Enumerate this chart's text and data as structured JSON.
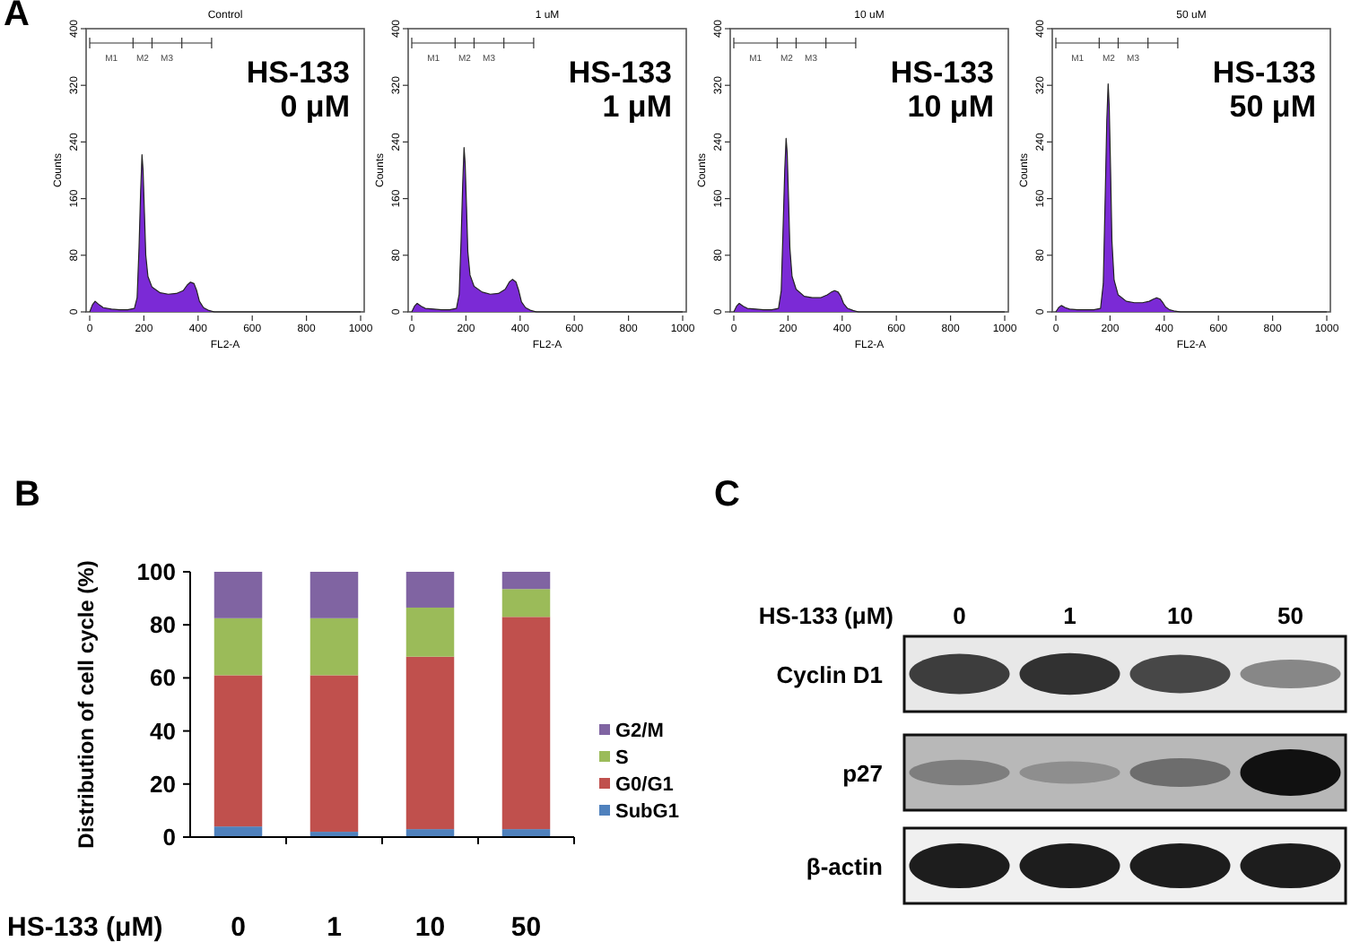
{
  "chart_data": [
    {
      "type": "area",
      "title": "Control",
      "xlabel": "FL2-A",
      "ylabel": "Counts",
      "annotations": [
        "A",
        "HS-133",
        "0 μM",
        "M1",
        "M2",
        "M3"
      ],
      "xlim": [
        0,
        1000
      ],
      "ylim": [
        0,
        400
      ],
      "xticks": [
        0,
        200,
        400,
        600,
        800,
        1000
      ],
      "yticks": [
        0,
        80,
        160,
        240,
        320,
        400
      ],
      "x": [
        0,
        10,
        20,
        35,
        50,
        80,
        110,
        140,
        165,
        175,
        182,
        188,
        193,
        197,
        202,
        207,
        215,
        230,
        260,
        290,
        320,
        345,
        360,
        372,
        385,
        395,
        405,
        420,
        440,
        460,
        1000
      ],
      "series": [
        {
          "color": "#7b2ad6",
          "values": [
            0,
            10,
            15,
            10,
            6,
            4,
            3,
            3,
            5,
            20,
            90,
            170,
            222,
            200,
            140,
            80,
            50,
            35,
            27,
            25,
            26,
            30,
            38,
            42,
            40,
            30,
            15,
            6,
            2,
            0,
            0
          ]
        }
      ]
    },
    {
      "type": "area",
      "title": "1 uM",
      "xlabel": "FL2-A",
      "ylabel": "Counts",
      "annotations": [
        "HS-133",
        "1 μM",
        "M1",
        "M2",
        "M3"
      ],
      "xlim": [
        0,
        1000
      ],
      "ylim": [
        0,
        400
      ],
      "xticks": [
        0,
        200,
        400,
        600,
        800,
        1000
      ],
      "yticks": [
        0,
        80,
        160,
        240,
        320,
        400
      ],
      "x": [
        0,
        10,
        20,
        35,
        50,
        80,
        110,
        140,
        165,
        175,
        182,
        188,
        193,
        197,
        202,
        207,
        215,
        230,
        260,
        290,
        320,
        345,
        360,
        372,
        385,
        395,
        405,
        420,
        440,
        460,
        1000
      ],
      "series": [
        {
          "color": "#7b2ad6",
          "values": [
            0,
            8,
            12,
            8,
            5,
            4,
            3,
            3,
            5,
            25,
            100,
            180,
            232,
            210,
            150,
            85,
            52,
            36,
            28,
            25,
            26,
            32,
            42,
            46,
            42,
            30,
            14,
            6,
            2,
            0,
            0
          ]
        }
      ]
    },
    {
      "type": "area",
      "title": "10 uM",
      "xlabel": "FL2-A",
      "ylabel": "Counts",
      "annotations": [
        "HS-133",
        "10 μM",
        "M1",
        "M2",
        "M3"
      ],
      "xlim": [
        0,
        1000
      ],
      "ylim": [
        0,
        400
      ],
      "xticks": [
        0,
        200,
        400,
        600,
        800,
        1000
      ],
      "yticks": [
        0,
        80,
        160,
        240,
        320,
        400
      ],
      "x": [
        0,
        10,
        20,
        35,
        50,
        80,
        110,
        140,
        165,
        175,
        182,
        188,
        193,
        197,
        202,
        207,
        215,
        230,
        260,
        290,
        320,
        345,
        360,
        372,
        385,
        395,
        405,
        420,
        440,
        460,
        1000
      ],
      "series": [
        {
          "color": "#7b2ad6",
          "values": [
            0,
            8,
            12,
            8,
            5,
            4,
            3,
            3,
            5,
            30,
            120,
            200,
            245,
            225,
            160,
            90,
            50,
            32,
            22,
            20,
            20,
            24,
            28,
            30,
            28,
            22,
            12,
            5,
            2,
            0,
            0
          ]
        }
      ]
    },
    {
      "type": "area",
      "title": "50 uM",
      "xlabel": "FL2-A",
      "ylabel": "Counts",
      "annotations": [
        "HS-133",
        "50 μM",
        "M1",
        "M2",
        "M3"
      ],
      "xlim": [
        0,
        1000
      ],
      "ylim": [
        0,
        400
      ],
      "xticks": [
        0,
        200,
        400,
        600,
        800,
        1000
      ],
      "yticks": [
        0,
        80,
        160,
        240,
        320,
        400
      ],
      "x": [
        0,
        10,
        20,
        35,
        50,
        80,
        110,
        140,
        165,
        175,
        182,
        188,
        193,
        197,
        202,
        207,
        215,
        230,
        260,
        290,
        320,
        345,
        360,
        372,
        385,
        395,
        405,
        420,
        440,
        460,
        1000
      ],
      "series": [
        {
          "color": "#7b2ad6",
          "values": [
            0,
            6,
            9,
            6,
            4,
            3,
            3,
            3,
            5,
            40,
            160,
            270,
            322,
            290,
            200,
            100,
            45,
            24,
            15,
            13,
            13,
            15,
            18,
            20,
            18,
            13,
            7,
            3,
            1,
            0,
            0
          ]
        }
      ]
    },
    {
      "type": "bar",
      "stacked": true,
      "xlabel": "HS-133 (μM)",
      "ylabel": "Distribution of cell cycle (%)",
      "annotations": [
        "B"
      ],
      "categories": [
        "0",
        "1",
        "10",
        "50"
      ],
      "ylim": [
        0,
        100
      ],
      "yticks": [
        0,
        20,
        40,
        60,
        80,
        100
      ],
      "legend": "right",
      "series": [
        {
          "name": "SubG1",
          "color": "#4f81bd",
          "values": [
            4,
            2,
            3,
            3
          ]
        },
        {
          "name": "G0/G1",
          "color": "#c0504d",
          "values": [
            57,
            59,
            65,
            80
          ]
        },
        {
          "name": "S",
          "color": "#9bbb59",
          "values": [
            21.5,
            21.5,
            18.5,
            10.5
          ]
        },
        {
          "name": "G2/M",
          "color": "#8064a2",
          "values": [
            17.5,
            17.5,
            13.5,
            6.5
          ]
        }
      ]
    },
    {
      "type": "other",
      "xlabel": "HS-133 (μM)",
      "annotations": [
        "C"
      ],
      "categories": [
        "0",
        "1",
        "10",
        "50"
      ],
      "y_categories": [
        "Cyclin D1",
        "p27",
        "β-actin"
      ]
    }
  ]
}
